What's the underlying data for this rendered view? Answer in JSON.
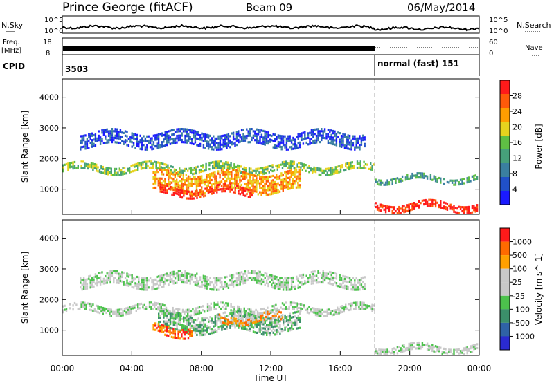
{
  "header": {
    "station": "Prince George (fitACF)",
    "beam": "Beam 09",
    "date": "06/May/2014"
  },
  "summary": {
    "nsky_label": "N.Sky",
    "nsky_ticks": [
      "10^5",
      "10^0"
    ],
    "nsearch_label": "N.Search",
    "freq_label": [
      "Freq.",
      "[MHz]"
    ],
    "freq_ticks": [
      "18",
      "8"
    ],
    "nave_label": "Nave",
    "nave_ticks": [
      "60",
      "0"
    ],
    "cpid_label": "CPID",
    "cpid_first": "3503",
    "cpid_second": "normal (fast) 151"
  },
  "colors": {
    "power": [
      "#1a1aff",
      "#2050c8",
      "#3a7fa0",
      "#46a07a",
      "#5fbe44",
      "#e6d21e",
      "#ff9d00",
      "#ff5a0a",
      "#ff1a1a"
    ],
    "velocity": [
      "#2a2ad0",
      "#2f62a6",
      "#3b8f6a",
      "#4cc24c",
      "#c8c8c8",
      "#c8c8c8",
      "#ffa000",
      "#ff6a00",
      "#ff1a1a"
    ]
  },
  "chart_data": [
    {
      "type": "heatmap",
      "name": "power",
      "xlabel": "",
      "ylabel": "Slant Range [km]",
      "y_ticks": [
        "4000",
        "3000",
        "2000",
        "1000"
      ],
      "colorbar_label": "Power [dB]",
      "colorbar_ticks": [
        "28",
        "24",
        "20",
        "16",
        "12",
        "8",
        "4"
      ],
      "bands": [
        {
          "t0": 0.0,
          "t1": 18.0,
          "r_center": 1750,
          "r_width": 260,
          "level": 4
        },
        {
          "t0": 5.2,
          "t1": 13.8,
          "r_center": 1300,
          "r_width": 650,
          "level": 6
        },
        {
          "t0": 5.6,
          "t1": 11.0,
          "r_center": 1000,
          "r_width": 300,
          "level": 8
        },
        {
          "t0": 18.0,
          "t1": 24.0,
          "r_center": 500,
          "r_width": 260,
          "level": 8
        },
        {
          "t0": 18.0,
          "t1": 24.0,
          "r_center": 1400,
          "r_width": 200,
          "level": 3
        },
        {
          "t0": 1.0,
          "t1": 17.5,
          "r_center": 2700,
          "r_width": 500,
          "level": 1
        }
      ]
    },
    {
      "type": "heatmap",
      "name": "velocity",
      "xlabel": "Time UT",
      "ylabel": "Slant Range [km]",
      "y_ticks": [
        "4000",
        "3000",
        "2000",
        "1000"
      ],
      "x_ticks": [
        "00:00",
        "04:00",
        "08:00",
        "12:00",
        "16:00",
        "20:00",
        "00:00"
      ],
      "colorbar_label": "Velocity [m s^-1]",
      "colorbar_ticks": [
        "1000",
        "500",
        "100",
        "25",
        "-25",
        "-100",
        "-500",
        "-1000"
      ],
      "bands": [
        {
          "t0": 0.0,
          "t1": 18.0,
          "r_center": 1750,
          "r_width": 260,
          "level": 4
        },
        {
          "t0": 5.5,
          "t1": 13.8,
          "r_center": 1300,
          "r_width": 600,
          "level": 3
        },
        {
          "t0": 5.2,
          "t1": 7.5,
          "r_center": 1050,
          "r_width": 350,
          "level": 7
        },
        {
          "t0": 9.0,
          "t1": 12.8,
          "r_center": 1450,
          "r_width": 300,
          "level": 6
        },
        {
          "t0": 18.0,
          "t1": 24.0,
          "r_center": 450,
          "r_width": 250,
          "level": 4
        },
        {
          "t0": 1.0,
          "t1": 17.5,
          "r_center": 2700,
          "r_width": 450,
          "level": 4
        }
      ]
    }
  ]
}
